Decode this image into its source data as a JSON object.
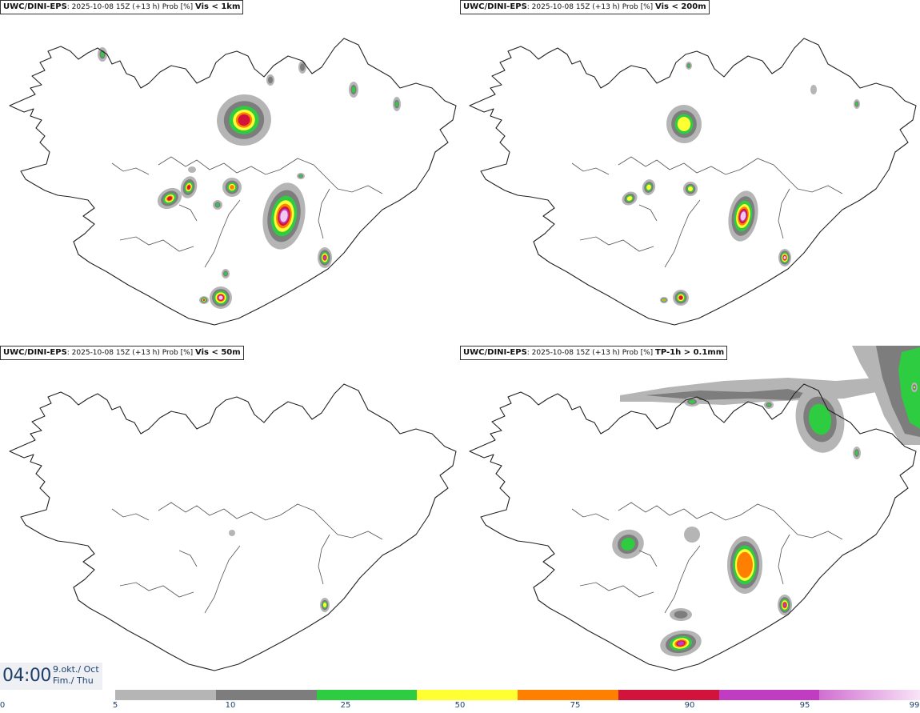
{
  "panels": [
    {
      "id": "vis1km",
      "title_model": "UWC/DINI-EPS",
      "title_info": ": 2025-10-08 15Z (+13 h) Prob [%]",
      "title_variable": "Vis < 1km"
    },
    {
      "id": "vis200",
      "title_model": "UWC/DINI-EPS",
      "title_info": ": 2025-10-08 15Z (+13 h) Prob [%]",
      "title_variable": "Vis < 200m"
    },
    {
      "id": "vis50",
      "title_model": "UWC/DINI-EPS",
      "title_info": ": 2025-10-08 15Z (+13 h) Prob [%]",
      "title_variable": "Vis < 50m"
    },
    {
      "id": "tp1h",
      "title_model": "UWC/DINI-EPS",
      "title_info": ": 2025-10-08 15Z (+13 h) Prob [%]",
      "title_variable": "TP-1h > 0.1mm"
    }
  ],
  "valid_time": {
    "hour": "04:00",
    "date_line": "9.okt./ Oct",
    "day_line": "Fim./ Thu"
  },
  "colorbar": {
    "ticks": [
      "0",
      "5",
      "10",
      "25",
      "50",
      "75",
      "90",
      "95",
      "99"
    ],
    "colors": [
      "#ffffff",
      "#b5b5b5",
      "#7d7d7d",
      "#2ecc40",
      "#ffff33",
      "#ff7f00",
      "#d2143c",
      "#c03cc0",
      "#f0c8f0"
    ]
  }
}
